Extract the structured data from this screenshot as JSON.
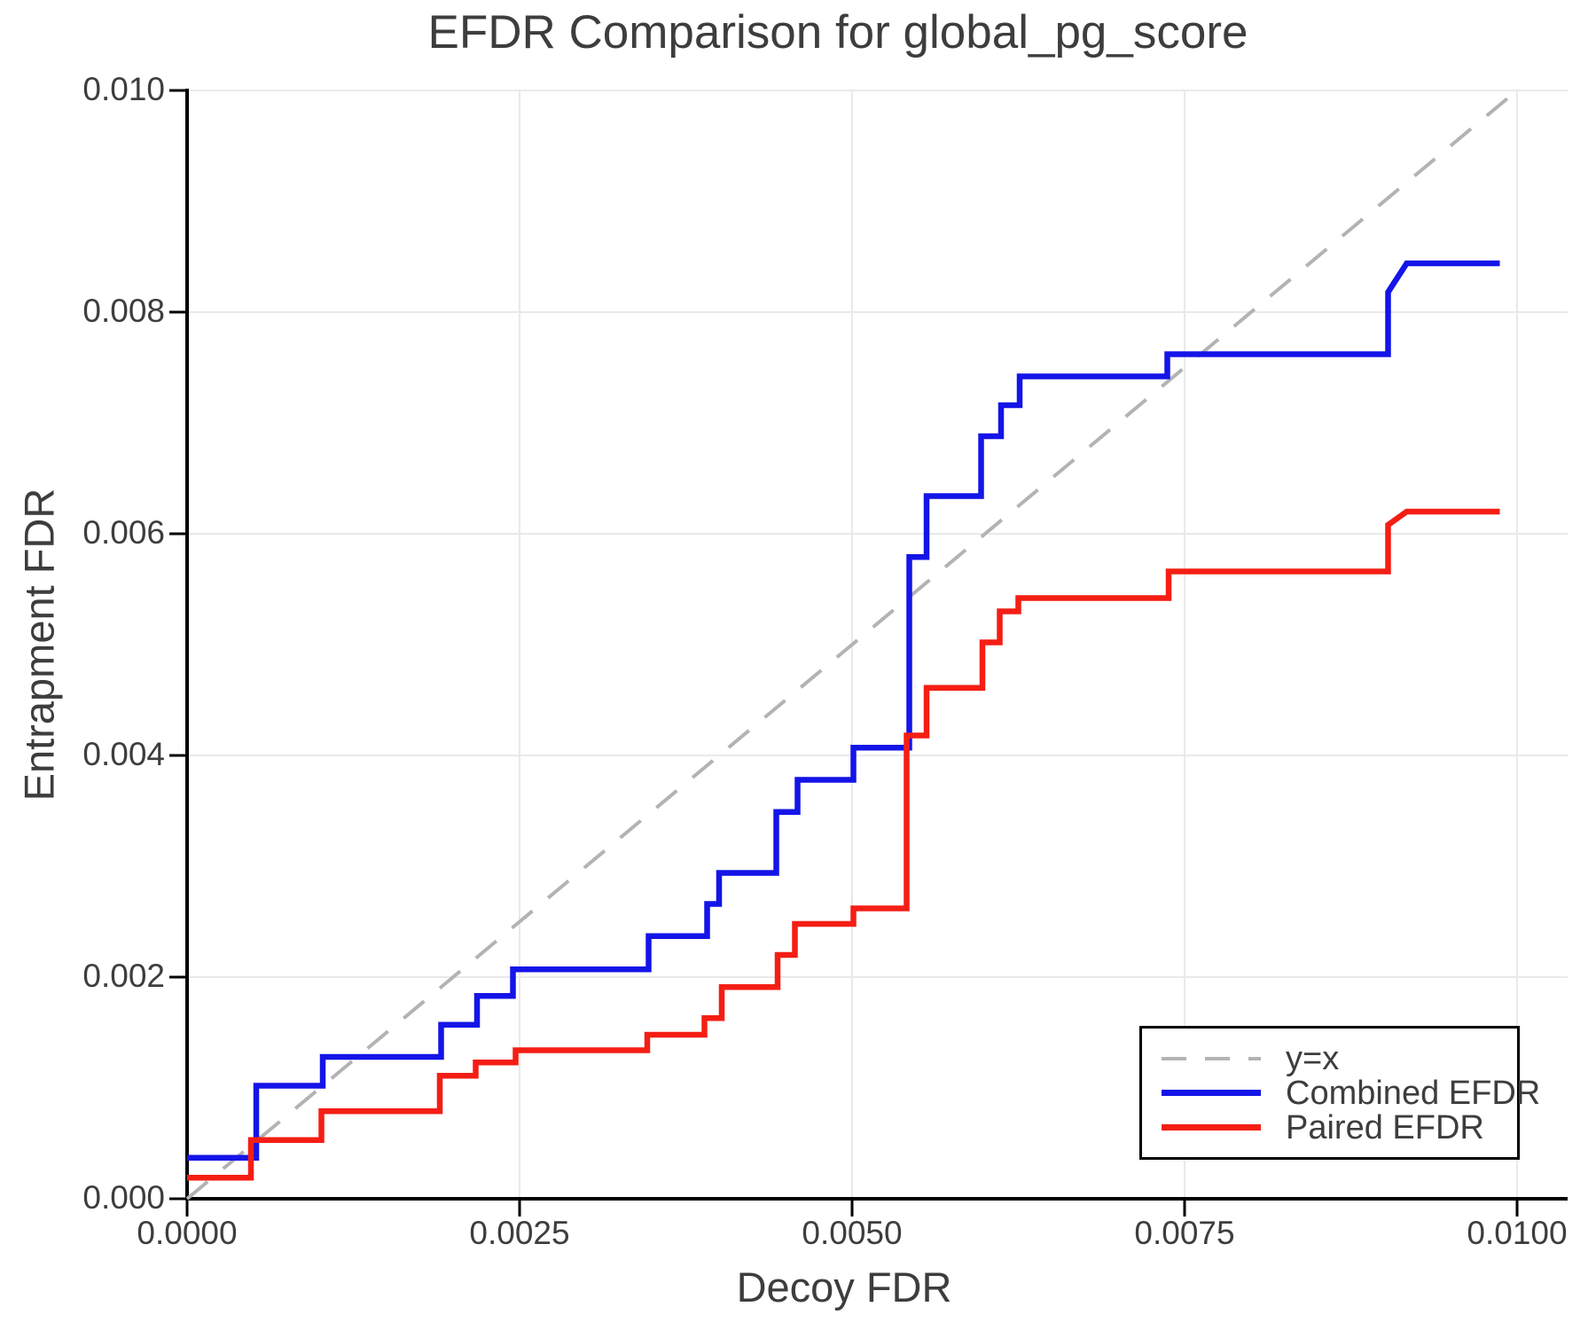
{
  "title": "EFDR Comparison for global_pg_score",
  "colors": {
    "combined": "#1414e8",
    "paired": "#f41e14",
    "identity": "#b3b3b3",
    "grid": "#e9e9e9",
    "spine": "#000000",
    "text": "#3d3d3d",
    "background": "#ffffff"
  },
  "chart_data": {
    "type": "line",
    "title": "EFDR Comparison for global_pg_score",
    "xlabel": "Decoy FDR",
    "ylabel": "Entrapment FDR",
    "xlim": [
      0,
      0.01038
    ],
    "ylim": [
      0,
      0.01
    ],
    "grid": true,
    "legend_position": "lower right",
    "x_ticks": {
      "values": [
        0,
        0.0025,
        0.005,
        0.0075,
        0.01
      ],
      "labels": [
        "0.0000",
        "0.0025",
        "0.0050",
        "0.0075",
        "0.0100"
      ]
    },
    "y_ticks": {
      "values": [
        0,
        0.002,
        0.004,
        0.006,
        0.008,
        0.01
      ],
      "labels": [
        "0.000",
        "0.002",
        "0.004",
        "0.006",
        "0.008",
        "0.010"
      ]
    },
    "series": [
      {
        "name": "y=x",
        "style": "dashed",
        "color": "#b3b3b3",
        "points": [
          [
            0,
            0
          ],
          [
            0.01,
            0.01
          ]
        ]
      },
      {
        "name": "Combined EFDR",
        "style": "solid",
        "color": "#1414e8",
        "points": [
          [
            0.0,
            0.00037
          ],
          [
            0.00052,
            0.00037
          ],
          [
            0.00052,
            0.00102
          ],
          [
            0.00102,
            0.00102
          ],
          [
            0.00102,
            0.00128
          ],
          [
            0.00191,
            0.00128
          ],
          [
            0.00191,
            0.00157
          ],
          [
            0.00218,
            0.00157
          ],
          [
            0.00218,
            0.00183
          ],
          [
            0.00245,
            0.00183
          ],
          [
            0.00245,
            0.00207
          ],
          [
            0.00347,
            0.00207
          ],
          [
            0.00347,
            0.00237
          ],
          [
            0.00391,
            0.00237
          ],
          [
            0.00391,
            0.00266
          ],
          [
            0.004,
            0.00266
          ],
          [
            0.004,
            0.00294
          ],
          [
            0.00443,
            0.00294
          ],
          [
            0.00443,
            0.00349
          ],
          [
            0.00459,
            0.00349
          ],
          [
            0.00459,
            0.00378
          ],
          [
            0.00501,
            0.00378
          ],
          [
            0.00501,
            0.00407
          ],
          [
            0.00543,
            0.00407
          ],
          [
            0.00543,
            0.00579
          ],
          [
            0.00556,
            0.00579
          ],
          [
            0.00556,
            0.00634
          ],
          [
            0.00597,
            0.00634
          ],
          [
            0.00597,
            0.00688
          ],
          [
            0.00612,
            0.00688
          ],
          [
            0.00612,
            0.00716
          ],
          [
            0.00626,
            0.00716
          ],
          [
            0.00626,
            0.00742
          ],
          [
            0.00737,
            0.00742
          ],
          [
            0.00737,
            0.00762
          ],
          [
            0.00903,
            0.00762
          ],
          [
            0.00903,
            0.00818
          ],
          [
            0.00917,
            0.00844
          ],
          [
            0.00987,
            0.00844
          ]
        ]
      },
      {
        "name": "Paired EFDR",
        "style": "solid",
        "color": "#f41e14",
        "points": [
          [
            0.0,
            0.00019
          ],
          [
            0.00048,
            0.00019
          ],
          [
            0.00048,
            0.00053
          ],
          [
            0.00101,
            0.00053
          ],
          [
            0.00101,
            0.00079
          ],
          [
            0.0019,
            0.00079
          ],
          [
            0.0019,
            0.00111
          ],
          [
            0.00217,
            0.00111
          ],
          [
            0.00217,
            0.00123
          ],
          [
            0.00247,
            0.00123
          ],
          [
            0.00247,
            0.00134
          ],
          [
            0.00346,
            0.00134
          ],
          [
            0.00346,
            0.00148
          ],
          [
            0.00389,
            0.00148
          ],
          [
            0.00389,
            0.00163
          ],
          [
            0.00402,
            0.00163
          ],
          [
            0.00402,
            0.00191
          ],
          [
            0.00444,
            0.00191
          ],
          [
            0.00444,
            0.0022
          ],
          [
            0.00457,
            0.0022
          ],
          [
            0.00457,
            0.00248
          ],
          [
            0.00501,
            0.00248
          ],
          [
            0.00501,
            0.00262
          ],
          [
            0.00541,
            0.00262
          ],
          [
            0.00541,
            0.00418
          ],
          [
            0.00556,
            0.00418
          ],
          [
            0.00556,
            0.00461
          ],
          [
            0.00598,
            0.00461
          ],
          [
            0.00598,
            0.00502
          ],
          [
            0.00611,
            0.00502
          ],
          [
            0.00611,
            0.0053
          ],
          [
            0.00625,
            0.0053
          ],
          [
            0.00625,
            0.00542
          ],
          [
            0.00738,
            0.00542
          ],
          [
            0.00738,
            0.00566
          ],
          [
            0.00903,
            0.00566
          ],
          [
            0.00903,
            0.00608
          ],
          [
            0.00917,
            0.0062
          ],
          [
            0.00987,
            0.0062
          ]
        ]
      }
    ]
  }
}
